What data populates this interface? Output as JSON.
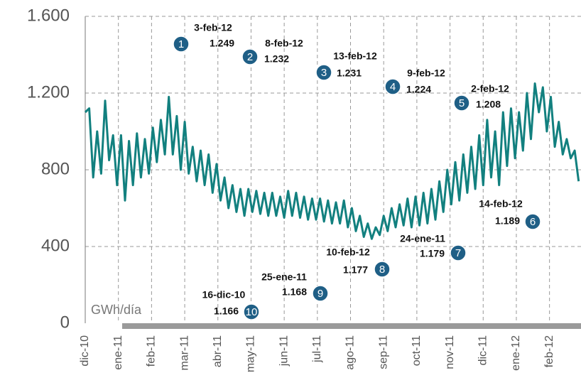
{
  "chart_data": {
    "type": "line",
    "y_label": "GWh/día",
    "xlim": [
      0,
      14.95
    ],
    "ylim": [
      0,
      1600
    ],
    "yticks": [
      {
        "value": 0,
        "label": "0"
      },
      {
        "value": 400,
        "label": "400"
      },
      {
        "value": 800,
        "label": "800"
      },
      {
        "value": 1200,
        "label": "1.200"
      },
      {
        "value": 1600,
        "label": "1.600"
      }
    ],
    "xticks": [
      {
        "value": 0,
        "label": "dic-10"
      },
      {
        "value": 1,
        "label": "ene-11"
      },
      {
        "value": 2,
        "label": "feb-11"
      },
      {
        "value": 3,
        "label": "mar-11"
      },
      {
        "value": 4,
        "label": "abr-11"
      },
      {
        "value": 5,
        "label": "may-11"
      },
      {
        "value": 6,
        "label": "jun-11"
      },
      {
        "value": 7,
        "label": "jul-11"
      },
      {
        "value": 8,
        "label": "ago-11"
      },
      {
        "value": 9,
        "label": "sep-11"
      },
      {
        "value": 10,
        "label": "oct-11"
      },
      {
        "value": 11,
        "label": "nov-11"
      },
      {
        "value": 12,
        "label": "dic-11"
      },
      {
        "value": 13,
        "label": "ene-12"
      },
      {
        "value": 14,
        "label": "feb-12"
      }
    ],
    "grid": true,
    "x": [
      0,
      0.12,
      0.24,
      0.36,
      0.48,
      0.6,
      0.72,
      0.84,
      0.96,
      1.08,
      1.2,
      1.32,
      1.44,
      1.56,
      1.68,
      1.8,
      1.92,
      2.04,
      2.16,
      2.28,
      2.4,
      2.52,
      2.64,
      2.76,
      2.88,
      3,
      3.12,
      3.24,
      3.36,
      3.48,
      3.6,
      3.72,
      3.84,
      3.96,
      4.08,
      4.2,
      4.32,
      4.44,
      4.56,
      4.68,
      4.8,
      4.92,
      5.04,
      5.16,
      5.28,
      5.4,
      5.52,
      5.64,
      5.76,
      5.88,
      6,
      6.12,
      6.24,
      6.36,
      6.48,
      6.6,
      6.72,
      6.84,
      6.96,
      7.08,
      7.2,
      7.32,
      7.44,
      7.56,
      7.68,
      7.8,
      7.92,
      8.04,
      8.16,
      8.28,
      8.4,
      8.52,
      8.64,
      8.76,
      8.88,
      9,
      9.12,
      9.24,
      9.36,
      9.48,
      9.6,
      9.72,
      9.84,
      9.96,
      10.08,
      10.2,
      10.32,
      10.44,
      10.56,
      10.68,
      10.8,
      10.92,
      11.04,
      11.16,
      11.28,
      11.4,
      11.52,
      11.64,
      11.76,
      11.88,
      12,
      12.12,
      12.24,
      12.36,
      12.48,
      12.6,
      12.72,
      12.84,
      12.96,
      13.08,
      13.2,
      13.32,
      13.44,
      13.56,
      13.68,
      13.8,
      13.92,
      14.04,
      14.16,
      14.28,
      14.4,
      14.52,
      14.64,
      14.76,
      14.88
    ],
    "series": [
      {
        "color": "#12807f",
        "values": [
          1100,
          1120,
          760,
          1000,
          780,
          1160,
          850,
          980,
          720,
          980,
          640,
          950,
          720,
          990,
          760,
          960,
          780,
          1020,
          840,
          1060,
          880,
          1180,
          880,
          1080,
          800,
          1050,
          780,
          920,
          740,
          900,
          720,
          880,
          680,
          830,
          640,
          760,
          600,
          720,
          580,
          700,
          560,
          700,
          580,
          690,
          570,
          680,
          560,
          680,
          560,
          660,
          550,
          690,
          560,
          680,
          550,
          660,
          540,
          650,
          540,
          650,
          530,
          640,
          520,
          630,
          520,
          640,
          500,
          600,
          480,
          560,
          450,
          520,
          440,
          500,
          460,
          560,
          480,
          600,
          500,
          620,
          510,
          650,
          500,
          660,
          510,
          680,
          520,
          700,
          540,
          740,
          580,
          800,
          620,
          840,
          640,
          880,
          680,
          920,
          700,
          980,
          720,
          1060,
          760,
          1000,
          720,
          1100,
          820,
          1120,
          860,
          1100,
          900,
          1200,
          960,
          1250,
          1100,
          1230,
          1000,
          1180,
          920,
          1050,
          880,
          960,
          860,
          900,
          740
        ]
      }
    ],
    "annotations": [
      {
        "rank": 1,
        "date": "3-feb-12",
        "value": 1249,
        "value_label": "1.249"
      },
      {
        "rank": 2,
        "date": "8-feb-12",
        "value": 1232,
        "value_label": "1.232"
      },
      {
        "rank": 3,
        "date": "13-feb-12",
        "value": 1231,
        "value_label": "1.231"
      },
      {
        "rank": 4,
        "date": "9-feb-12",
        "value": 1224,
        "value_label": "1.224"
      },
      {
        "rank": 5,
        "date": "2-feb-12",
        "value": 1208,
        "value_label": "1.208"
      },
      {
        "rank": 6,
        "date": "14-feb-12",
        "value": 1189,
        "value_label": "1.189"
      },
      {
        "rank": 7,
        "date": "24-ene-11",
        "value": 1179,
        "value_label": "1.179"
      },
      {
        "rank": 8,
        "date": "10-feb-12",
        "value": 1177,
        "value_label": "1.177"
      },
      {
        "rank": 9,
        "date": "25-ene-11",
        "value": 1168,
        "value_label": "1.168"
      },
      {
        "rank": 10,
        "date": "16-dic-10",
        "value": 1166,
        "value_label": "1.166"
      }
    ]
  }
}
